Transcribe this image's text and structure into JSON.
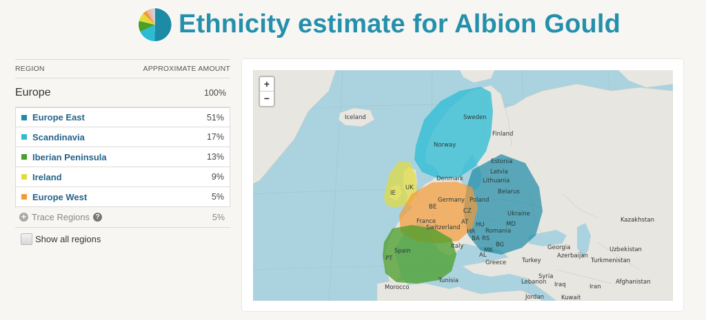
{
  "page_title": "Ethnicity estimate for Albion Gould",
  "header_icon": "ethnicity-pie-icon",
  "table": {
    "col_region": "REGION",
    "col_amount": "APPROXIMATE AMOUNT",
    "region": {
      "name": "Europe",
      "pct": "100%"
    },
    "rows": [
      {
        "label": "Europe East",
        "pct": "51%",
        "color": "#1d8aa6"
      },
      {
        "label": "Scandinavia",
        "pct": "17%",
        "color": "#2bbcd4"
      },
      {
        "label": "Iberian Peninsula",
        "pct": "13%",
        "color": "#4a9e2a"
      },
      {
        "label": "Ireland",
        "pct": "9%",
        "color": "#e1dc3a"
      },
      {
        "label": "Europe West",
        "pct": "5%",
        "color": "#f39a38"
      }
    ],
    "trace": {
      "label": "Trace Regions",
      "pct": "5%"
    },
    "show_all": "Show all regions"
  },
  "map": {
    "zoom_in": "+",
    "zoom_out": "−",
    "labels": [
      "Iceland",
      "Sweden",
      "Finland",
      "Norway",
      "Estonia",
      "Latvia",
      "Lithuania",
      "Denmark",
      "Belarus",
      "UK",
      "IE",
      "Germany",
      "Poland",
      "BE",
      "CZ",
      "Ukraine",
      "France",
      "Switzerland",
      "AT",
      "HU",
      "MD",
      "HR",
      "Romania",
      "BA",
      "RS",
      "Italy",
      "BG",
      "MK",
      "AL",
      "Spain",
      "PT",
      "Greece",
      "Turkey",
      "Georgia",
      "Azerbaijan",
      "Kazakhstan",
      "Uzbekistan",
      "Turkmenistan",
      "Syria",
      "Lebanon",
      "Iraq",
      "Iran",
      "Afghanistan",
      "Tunisia",
      "Morocco",
      "Jordan",
      "Kuwait"
    ]
  }
}
